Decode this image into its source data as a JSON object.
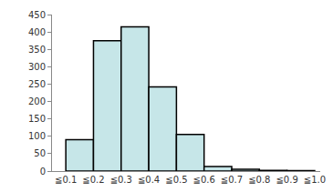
{
  "chart_data": {
    "type": "histogram",
    "bins": [
      0.1,
      0.2,
      0.3,
      0.4,
      0.5,
      0.6,
      0.7,
      0.8,
      0.9,
      1.0
    ],
    "values": [
      90,
      375,
      415,
      242,
      105,
      13,
      5,
      2,
      1
    ],
    "color": "#c6e6e8",
    "xlim": [
      0.05,
      1.02
    ],
    "xticks": [
      {
        "value": 0.1,
        "label": "≦0.1"
      },
      {
        "value": 0.2,
        "label": "≦0.2"
      },
      {
        "value": 0.3,
        "label": "≦0.3"
      },
      {
        "value": 0.4,
        "label": "≦0.4"
      },
      {
        "value": 0.5,
        "label": "≦0.5"
      },
      {
        "value": 0.6,
        "label": "≦0.6"
      },
      {
        "value": 0.7,
        "label": "≦0.7"
      },
      {
        "value": 0.8,
        "label": "≦0.8"
      },
      {
        "value": 0.9,
        "label": "≦0.9"
      },
      {
        "value": 1.0,
        "label": "≦1.0"
      }
    ],
    "ylim": [
      0,
      450
    ],
    "yticks": [
      0,
      50,
      100,
      150,
      200,
      250,
      300,
      350,
      400,
      450
    ],
    "grid": false
  }
}
